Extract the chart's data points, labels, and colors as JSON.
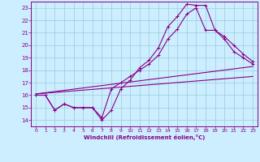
{
  "bg_color": "#cceeff",
  "grid_color": "#99ccdd",
  "line_color": "#880088",
  "xlim": [
    -0.5,
    23.5
  ],
  "ylim": [
    13.5,
    23.5
  ],
  "xlabel": "Windchill (Refroidissement éolien,°C)",
  "xticks": [
    0,
    1,
    2,
    3,
    4,
    5,
    6,
    7,
    8,
    9,
    10,
    11,
    12,
    13,
    14,
    15,
    16,
    17,
    18,
    19,
    20,
    21,
    22,
    23
  ],
  "yticks": [
    14,
    15,
    16,
    17,
    18,
    19,
    20,
    21,
    22,
    23
  ],
  "line1_x": [
    0,
    1,
    2,
    3,
    4,
    5,
    6,
    7,
    8,
    9,
    10,
    11,
    12,
    13,
    14,
    15,
    16,
    17,
    18,
    19,
    20,
    21,
    22,
    23
  ],
  "line1_y": [
    16.0,
    16.0,
    14.8,
    15.3,
    15.0,
    15.0,
    15.0,
    14.0,
    14.8,
    16.5,
    17.2,
    18.2,
    18.8,
    19.8,
    21.5,
    22.3,
    23.3,
    23.2,
    23.2,
    21.2,
    20.5,
    19.5,
    19.0,
    18.5
  ],
  "line2_x": [
    0,
    1,
    2,
    3,
    4,
    5,
    6,
    7,
    8,
    9,
    10,
    11,
    12,
    13,
    14,
    15,
    16,
    17,
    18,
    19,
    20,
    21,
    22,
    23
  ],
  "line2_y": [
    16.0,
    16.0,
    14.8,
    15.3,
    15.0,
    15.0,
    15.0,
    14.2,
    16.5,
    17.0,
    17.5,
    18.0,
    18.5,
    19.2,
    20.5,
    21.3,
    22.5,
    23.0,
    21.2,
    21.2,
    20.7,
    20.0,
    19.3,
    18.7
  ],
  "line3_x": [
    0,
    23
  ],
  "line3_y": [
    16.1,
    18.3
  ],
  "line4_x": [
    0,
    23
  ],
  "line4_y": [
    16.1,
    17.5
  ]
}
